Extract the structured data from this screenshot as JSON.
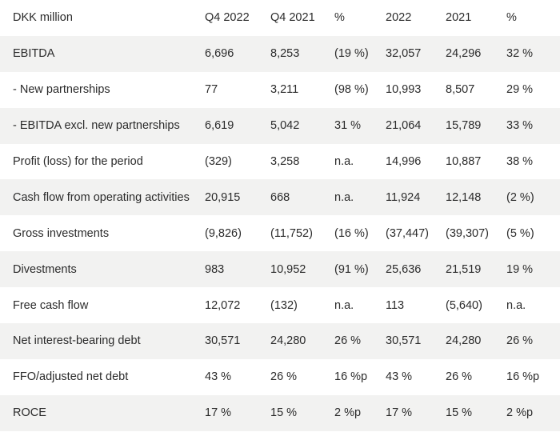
{
  "table": {
    "headers": [
      "DKK million",
      "Q4 2022",
      "Q4 2021",
      "%",
      "2022",
      "2021",
      "%"
    ],
    "rows": [
      [
        "EBITDA",
        "6,696",
        "8,253",
        "(19 %)",
        "32,057",
        "24,296",
        "32 %"
      ],
      [
        "- New partnerships",
        "77",
        "3,211",
        "(98 %)",
        "10,993",
        "8,507",
        "29 %"
      ],
      [
        "- EBITDA excl. new partnerships",
        "6,619",
        "5,042",
        "31 %",
        "21,064",
        "15,789",
        "33 %"
      ],
      [
        "Profit (loss) for the period",
        "(329)",
        "3,258",
        "n.a.",
        "14,996",
        "10,887",
        "38 %"
      ],
      [
        "Cash flow from operating activities",
        "20,915",
        "668",
        "n.a.",
        "11,924",
        "12,148",
        "(2 %)"
      ],
      [
        "Gross investments",
        "(9,826)",
        "(11,752)",
        "(16 %)",
        "(37,447)",
        "(39,307)",
        "(5 %)"
      ],
      [
        "Divestments",
        "983",
        "10,952",
        "(91 %)",
        "25,636",
        "21,519",
        "19 %"
      ],
      [
        "Free cash flow",
        "12,072",
        "(132)",
        "n.a.",
        "113",
        "(5,640)",
        "n.a."
      ],
      [
        "Net interest-bearing debt",
        "30,571",
        "24,280",
        "26 %",
        "30,571",
        "24,280",
        "26 %"
      ],
      [
        "FFO/adjusted net debt",
        "43 %",
        "26 %",
        "16 %p",
        "43 %",
        "26 %",
        "16 %p"
      ],
      [
        "ROCE",
        "17 %",
        "15 %",
        "2 %p",
        "17 %",
        "15 %",
        "2 %p"
      ]
    ]
  },
  "colors": {
    "stripe": "#f2f2f1",
    "text": "#2b2b2b",
    "background": "#ffffff"
  }
}
